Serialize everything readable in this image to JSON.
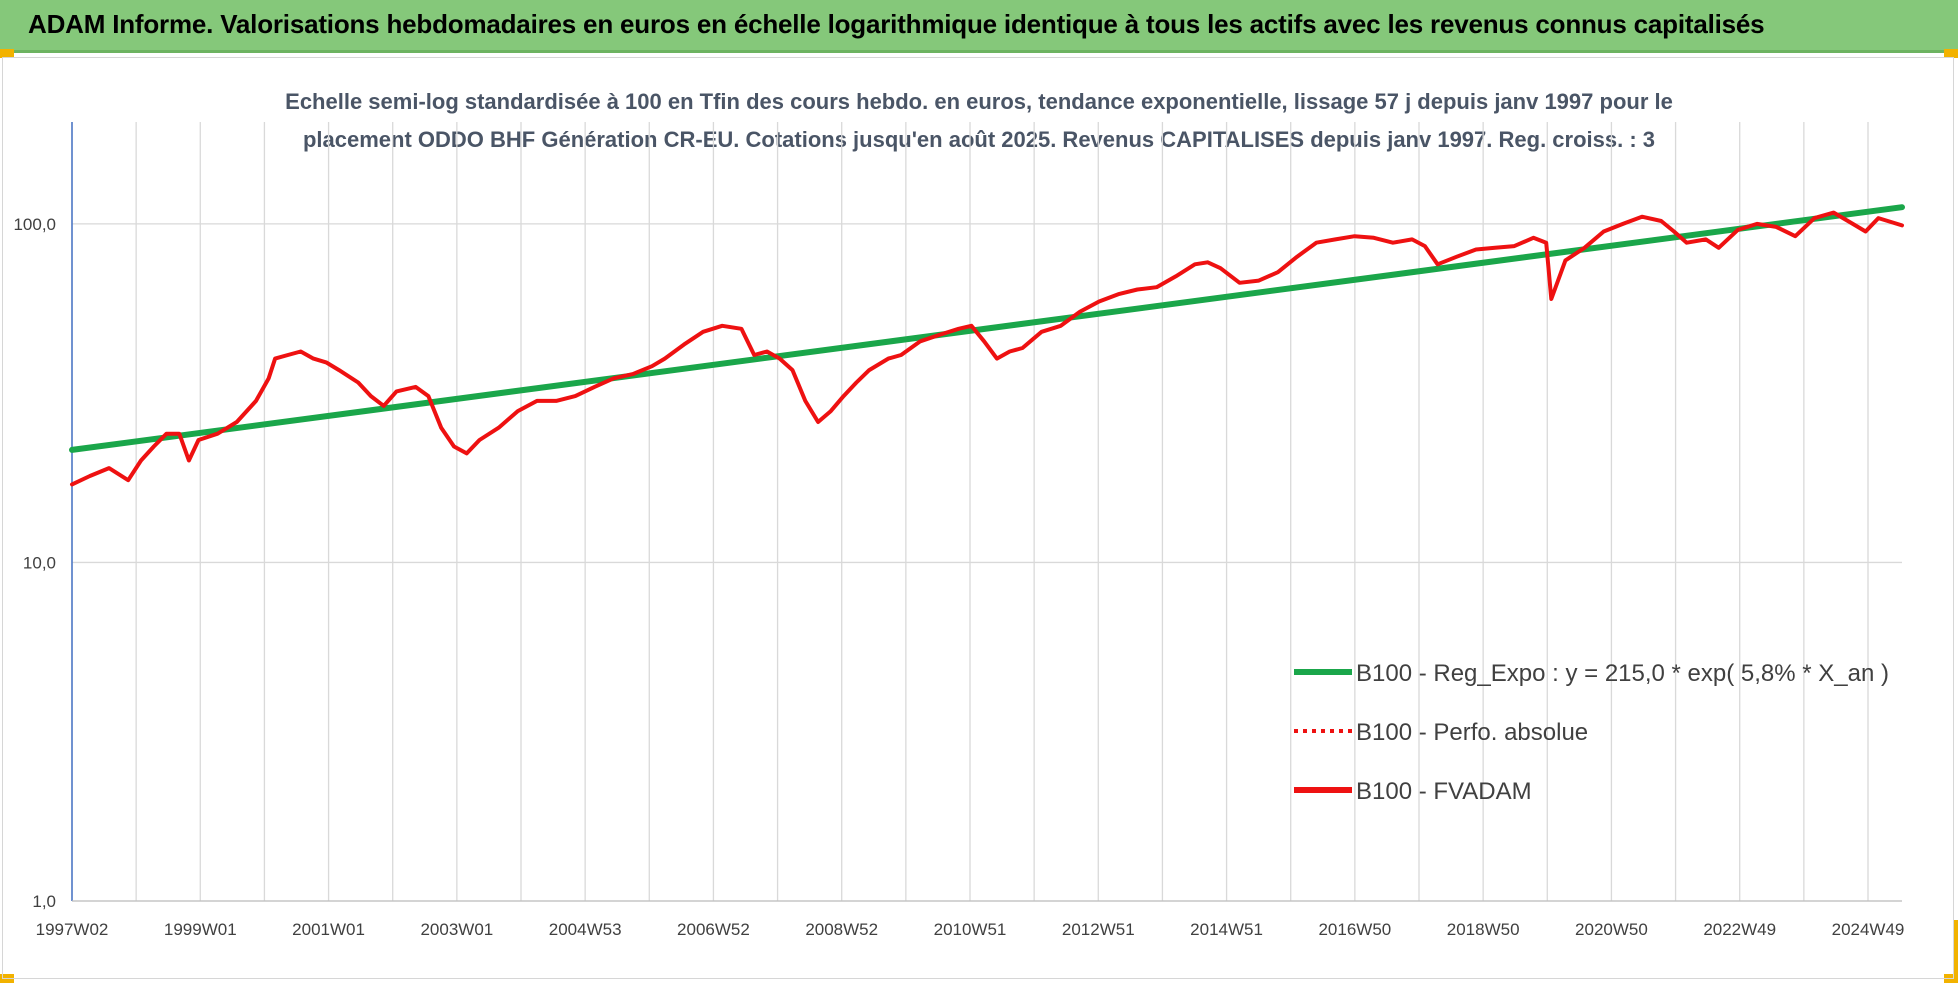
{
  "banner": {
    "title": "ADAM Informe. Valorisations hebdomadaires en euros en échelle logarithmique identique à tous les actifs avec les revenus connus capitalisés"
  },
  "colors": {
    "banner_bg": "#85c87a",
    "corner_marks": "#f2b200",
    "regression_line": "#1aa64a",
    "fvadam_line": "#ee1111",
    "perf_line": "#ee1111",
    "grid": "#d9d9d9",
    "axis": "#4472c4"
  },
  "chart_data": {
    "type": "line",
    "title_lines": [
      "Echelle semi-log standardisée à 100 en Tfin des cours hebdo. en euros, tendance exponentielle, lissage 57 j depuis janv 1997 pour le",
      "placement ODDO BHF Génération CR-EU. Cotations jusqu'en août 2025. Revenus CAPITALISES depuis janv 1997.  Reg. croiss. : 3"
    ],
    "y_scale": "log",
    "ylim": [
      1,
      200
    ],
    "y_ticks": [
      "1,0",
      "10,0",
      "100,0"
    ],
    "y_tick_values": [
      1,
      10,
      100
    ],
    "xlim": [
      1997.02,
      2025.67
    ],
    "x_tick_labels": [
      "1997W02",
      "1999W01",
      "2001W01",
      "2003W01",
      "2004W53",
      "2006W52",
      "2008W52",
      "2010W51",
      "2012W51",
      "2014W51",
      "2016W50",
      "2018W50",
      "2020W50",
      "2022W49",
      "2024W49"
    ],
    "grid": true,
    "legend_position": "bottom-right",
    "series": [
      {
        "name": "B100 - Reg_Expo : y = 215,0 * exp( 5,8% *  X_an )",
        "style": "solid",
        "color": "#1aa64a",
        "x": [
          1997.02,
          2025.67
        ],
        "y": [
          21.5,
          112
        ]
      },
      {
        "name": "B100 - Perfo. absolue",
        "style": "dotted",
        "color": "#ee1111",
        "x": [],
        "y": []
      },
      {
        "name": "B100 - FVADAM",
        "style": "solid",
        "color": "#ee1111",
        "x": [
          1997.02,
          1997.3,
          1997.6,
          1997.9,
          1998.1,
          1998.3,
          1998.5,
          1998.7,
          1998.85,
          1999.0,
          1999.3,
          1999.6,
          1999.9,
          2000.1,
          2000.2,
          2000.4,
          2000.6,
          2000.8,
          2001.0,
          2001.2,
          2001.5,
          2001.7,
          2001.9,
          2002.1,
          2002.4,
          2002.6,
          2002.8,
          2003.0,
          2003.2,
          2003.4,
          2003.7,
          2004.0,
          2004.3,
          2004.6,
          2004.9,
          2005.2,
          2005.5,
          2005.8,
          2006.1,
          2006.3,
          2006.6,
          2006.9,
          2007.2,
          2007.5,
          2007.7,
          2007.9,
          2008.1,
          2008.3,
          2008.5,
          2008.7,
          2008.9,
          2009.1,
          2009.3,
          2009.5,
          2009.8,
          2010.0,
          2010.3,
          2010.6,
          2010.9,
          2011.1,
          2011.3,
          2011.5,
          2011.7,
          2011.9,
          2012.2,
          2012.5,
          2012.8,
          2013.1,
          2013.4,
          2013.7,
          2014.0,
          2014.3,
          2014.6,
          2014.8,
          2015.0,
          2015.3,
          2015.6,
          2015.9,
          2016.2,
          2016.5,
          2016.8,
          2017.1,
          2017.4,
          2017.7,
          2018.0,
          2018.2,
          2018.4,
          2018.7,
          2019.0,
          2019.3,
          2019.6,
          2019.9,
          2020.1,
          2020.18,
          2020.4,
          2020.7,
          2021.0,
          2021.3,
          2021.6,
          2021.9,
          2022.1,
          2022.3,
          2022.6,
          2022.8,
          2023.1,
          2023.4,
          2023.7,
          2024.0,
          2024.3,
          2024.6,
          2024.9,
          2025.1,
          2025.3,
          2025.67
        ],
        "y": [
          17,
          18,
          19,
          17.5,
          20,
          22,
          24,
          24,
          20,
          23,
          24,
          26,
          30,
          35,
          40,
          41,
          42,
          40,
          39,
          37,
          34,
          31,
          29,
          32,
          33,
          31,
          25,
          22,
          21,
          23,
          25,
          28,
          30,
          30,
          31,
          33,
          35,
          36,
          38,
          40,
          44,
          48,
          50,
          49,
          41,
          42,
          40,
          37,
          30,
          26,
          28,
          31,
          34,
          37,
          40,
          41,
          45,
          47,
          49,
          50,
          45,
          40,
          42,
          43,
          48,
          50,
          55,
          59,
          62,
          64,
          65,
          70,
          76,
          77,
          74,
          67,
          68,
          72,
          80,
          88,
          90,
          92,
          91,
          88,
          90,
          86,
          76,
          80,
          84,
          85,
          86,
          91,
          88,
          60,
          78,
          85,
          95,
          100,
          105,
          102,
          95,
          88,
          90,
          85,
          96,
          100,
          98,
          92,
          104,
          108,
          100,
          95,
          104,
          99
        ]
      }
    ]
  }
}
